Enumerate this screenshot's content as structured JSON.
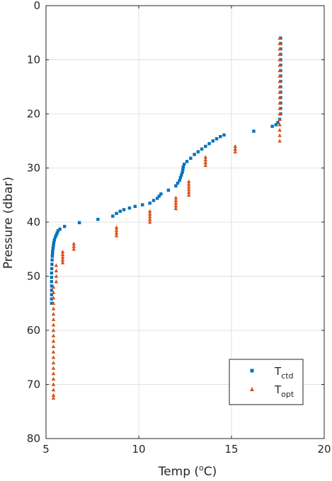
{
  "chart_data": {
    "type": "scatter",
    "xlabel": "Temp (°C)",
    "xlabel_parts": {
      "prefix": "Temp (",
      "sup": "o",
      "suffix": "C)"
    },
    "ylabel": "Pressure (dbar)",
    "xlim": [
      5,
      20
    ],
    "ylim": [
      0,
      80
    ],
    "y_reversed": true,
    "xticks": [
      "5",
      "10",
      "15",
      "20"
    ],
    "yticks": [
      "0",
      "10",
      "20",
      "30",
      "40",
      "50",
      "60",
      "70",
      "80"
    ],
    "grid": true,
    "legend_position": "bottom-right",
    "series": [
      {
        "name": "T_ctd",
        "label_main": "T",
        "label_sub": "ctd",
        "color": "#0072BD",
        "marker": "square",
        "points": [
          [
            17.65,
            6.0
          ],
          [
            17.65,
            7.0
          ],
          [
            17.65,
            8.0
          ],
          [
            17.65,
            9.0
          ],
          [
            17.65,
            10.0
          ],
          [
            17.65,
            11.0
          ],
          [
            17.65,
            12.0
          ],
          [
            17.65,
            13.0
          ],
          [
            17.65,
            14.0
          ],
          [
            17.65,
            15.0
          ],
          [
            17.65,
            16.0
          ],
          [
            17.65,
            17.0
          ],
          [
            17.65,
            18.0
          ],
          [
            17.65,
            19.0
          ],
          [
            17.65,
            20.0
          ],
          [
            17.6,
            21.0
          ],
          [
            17.5,
            21.6
          ],
          [
            17.4,
            22.0
          ],
          [
            17.2,
            22.3
          ],
          [
            16.2,
            23.2
          ],
          [
            14.6,
            23.9
          ],
          [
            14.4,
            24.2
          ],
          [
            14.2,
            24.6
          ],
          [
            14.0,
            25.0
          ],
          [
            13.8,
            25.5
          ],
          [
            13.6,
            26.0
          ],
          [
            13.4,
            26.5
          ],
          [
            13.2,
            27.0
          ],
          [
            13.0,
            27.5
          ],
          [
            12.8,
            28.2
          ],
          [
            12.6,
            28.8
          ],
          [
            12.45,
            29.3
          ],
          [
            12.4,
            29.8
          ],
          [
            12.38,
            30.3
          ],
          [
            12.35,
            30.8
          ],
          [
            12.3,
            31.3
          ],
          [
            12.25,
            31.8
          ],
          [
            12.2,
            32.3
          ],
          [
            12.1,
            32.8
          ],
          [
            12.0,
            33.3
          ],
          [
            11.6,
            34.1
          ],
          [
            11.2,
            34.8
          ],
          [
            11.1,
            35.2
          ],
          [
            11.0,
            35.6
          ],
          [
            10.8,
            36.0
          ],
          [
            10.6,
            36.5
          ],
          [
            10.2,
            36.8
          ],
          [
            9.8,
            37.1
          ],
          [
            9.5,
            37.4
          ],
          [
            9.2,
            37.7
          ],
          [
            9.0,
            38.0
          ],
          [
            8.8,
            38.4
          ],
          [
            8.6,
            38.9
          ],
          [
            7.8,
            39.5
          ],
          [
            6.8,
            40.1
          ],
          [
            6.0,
            40.8
          ],
          [
            5.75,
            41.3
          ],
          [
            5.65,
            41.6
          ],
          [
            5.6,
            42.0
          ],
          [
            5.55,
            42.4
          ],
          [
            5.5,
            42.8
          ],
          [
            5.45,
            43.3
          ],
          [
            5.42,
            43.8
          ],
          [
            5.4,
            44.3
          ],
          [
            5.38,
            44.8
          ],
          [
            5.36,
            45.3
          ],
          [
            5.35,
            45.8
          ],
          [
            5.34,
            46.3
          ],
          [
            5.33,
            47.0
          ],
          [
            5.32,
            47.8
          ],
          [
            5.31,
            48.6
          ],
          [
            5.3,
            49.4
          ],
          [
            5.3,
            50.2
          ],
          [
            5.3,
            51.0
          ],
          [
            5.3,
            51.8
          ],
          [
            5.3,
            52.6
          ],
          [
            5.3,
            53.4
          ],
          [
            5.3,
            54.2
          ],
          [
            5.3,
            55.0
          ]
        ]
      },
      {
        "name": "T_opt",
        "label_main": "T",
        "label_sub": "opt",
        "color": "#D95319",
        "marker": "triangle",
        "points": [
          [
            17.6,
            6.0
          ],
          [
            17.6,
            7.0
          ],
          [
            17.6,
            8.0
          ],
          [
            17.6,
            9.0
          ],
          [
            17.6,
            10.0
          ],
          [
            17.6,
            11.0
          ],
          [
            17.6,
            12.0
          ],
          [
            17.6,
            13.0
          ],
          [
            17.6,
            14.0
          ],
          [
            17.6,
            15.0
          ],
          [
            17.6,
            16.0
          ],
          [
            17.6,
            17.0
          ],
          [
            17.6,
            18.0
          ],
          [
            17.6,
            19.0
          ],
          [
            17.6,
            20.0
          ],
          [
            17.6,
            21.0
          ],
          [
            17.6,
            22.0
          ],
          [
            17.6,
            23.0
          ],
          [
            17.6,
            24.0
          ],
          [
            17.6,
            25.0
          ],
          [
            15.2,
            26.0
          ],
          [
            15.2,
            26.5
          ],
          [
            15.2,
            27.0
          ],
          [
            13.6,
            28.0
          ],
          [
            13.6,
            28.5
          ],
          [
            13.6,
            29.0
          ],
          [
            13.6,
            29.5
          ],
          [
            12.7,
            32.5
          ],
          [
            12.7,
            33.0
          ],
          [
            12.7,
            33.5
          ],
          [
            12.7,
            34.0
          ],
          [
            12.7,
            34.5
          ],
          [
            12.7,
            35.0
          ],
          [
            12.0,
            35.5
          ],
          [
            12.0,
            36.0
          ],
          [
            12.0,
            36.5
          ],
          [
            12.0,
            37.0
          ],
          [
            12.0,
            37.5
          ],
          [
            10.6,
            38.0
          ],
          [
            10.6,
            38.5
          ],
          [
            10.6,
            39.0
          ],
          [
            10.6,
            39.5
          ],
          [
            10.6,
            40.0
          ],
          [
            8.8,
            41.0
          ],
          [
            8.8,
            41.5
          ],
          [
            8.8,
            42.0
          ],
          [
            8.8,
            42.5
          ],
          [
            6.5,
            44.0
          ],
          [
            6.5,
            44.5
          ],
          [
            6.5,
            45.0
          ],
          [
            5.9,
            45.5
          ],
          [
            5.9,
            46.0
          ],
          [
            5.9,
            46.5
          ],
          [
            5.9,
            47.0
          ],
          [
            5.9,
            47.5
          ],
          [
            5.55,
            48.0
          ],
          [
            5.55,
            49.0
          ],
          [
            5.55,
            50.0
          ],
          [
            5.55,
            51.0
          ],
          [
            5.4,
            52.0
          ],
          [
            5.4,
            53.0
          ],
          [
            5.4,
            54.0
          ],
          [
            5.4,
            55.0
          ],
          [
            5.4,
            56.0
          ],
          [
            5.4,
            57.0
          ],
          [
            5.4,
            58.0
          ],
          [
            5.4,
            59.0
          ],
          [
            5.4,
            60.0
          ],
          [
            5.4,
            61.0
          ],
          [
            5.4,
            62.0
          ],
          [
            5.4,
            63.0
          ],
          [
            5.4,
            64.0
          ],
          [
            5.4,
            65.0
          ],
          [
            5.4,
            66.0
          ],
          [
            5.4,
            67.0
          ],
          [
            5.4,
            68.0
          ],
          [
            5.4,
            69.0
          ],
          [
            5.4,
            70.0
          ],
          [
            5.4,
            71.0
          ],
          [
            5.4,
            72.0
          ],
          [
            5.4,
            72.5
          ]
        ]
      }
    ]
  }
}
